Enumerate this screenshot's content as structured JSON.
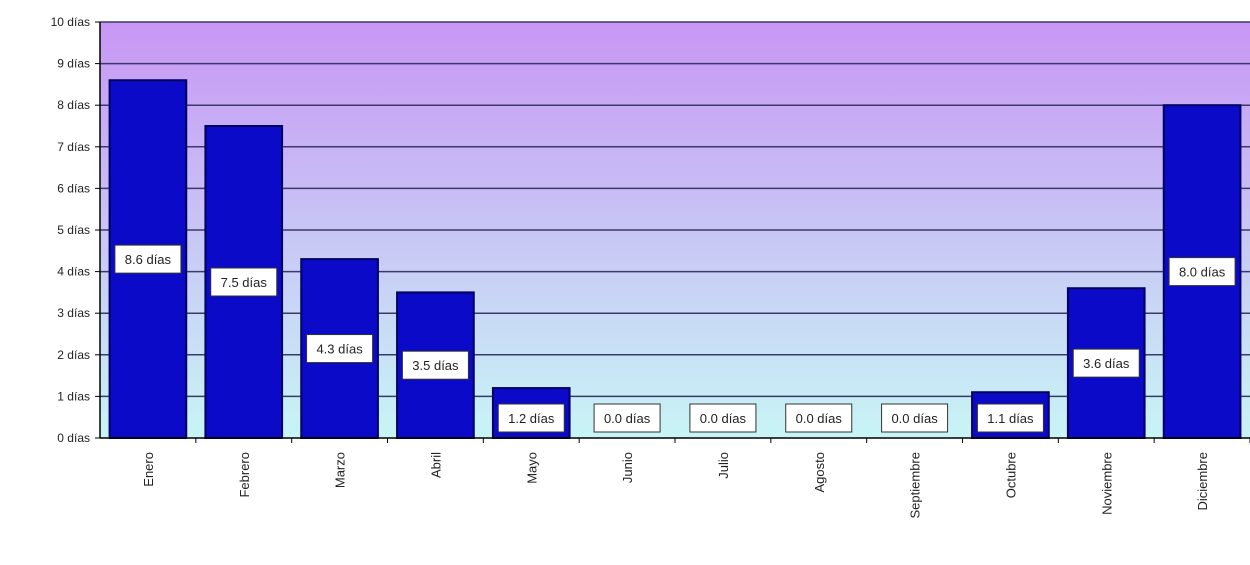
{
  "chart_data": {
    "type": "bar",
    "title": "",
    "xlabel": "",
    "ylabel": "",
    "ylim": [
      0,
      10
    ],
    "y_unit": "días",
    "y_tick_labels": [
      "0 días",
      "1 días",
      "2 días",
      "3 días",
      "4 días",
      "5 días",
      "6 días",
      "7 días",
      "8 días",
      "9 días",
      "10 días"
    ],
    "categories": [
      "Enero",
      "Febrero",
      "Marzo",
      "Abril",
      "Mayo",
      "Junio",
      "Julio",
      "Agosto",
      "Septiembre",
      "Octubre",
      "Noviembre",
      "Diciembre"
    ],
    "values": [
      8.6,
      7.5,
      4.3,
      3.5,
      1.2,
      0.0,
      0.0,
      0.0,
      0.0,
      1.1,
      3.6,
      8.0
    ],
    "data_labels": [
      "8.6 días",
      "7.5 días",
      "4.3 días",
      "3.5 días",
      "1.2 días",
      "0.0 días",
      "0.0 días",
      "0.0 días",
      "0.0 días",
      "1.1 días",
      "3.6 días",
      "8.0 días"
    ],
    "grid": true,
    "legend": "none",
    "colors": {
      "bar": "#0a0ac8",
      "bar_border": "#000060",
      "plot_bg_top": "#c896f5",
      "plot_bg_bottom": "#c8f5f5",
      "grid": "#3a3a6a",
      "label_box": "#ffffff"
    }
  }
}
